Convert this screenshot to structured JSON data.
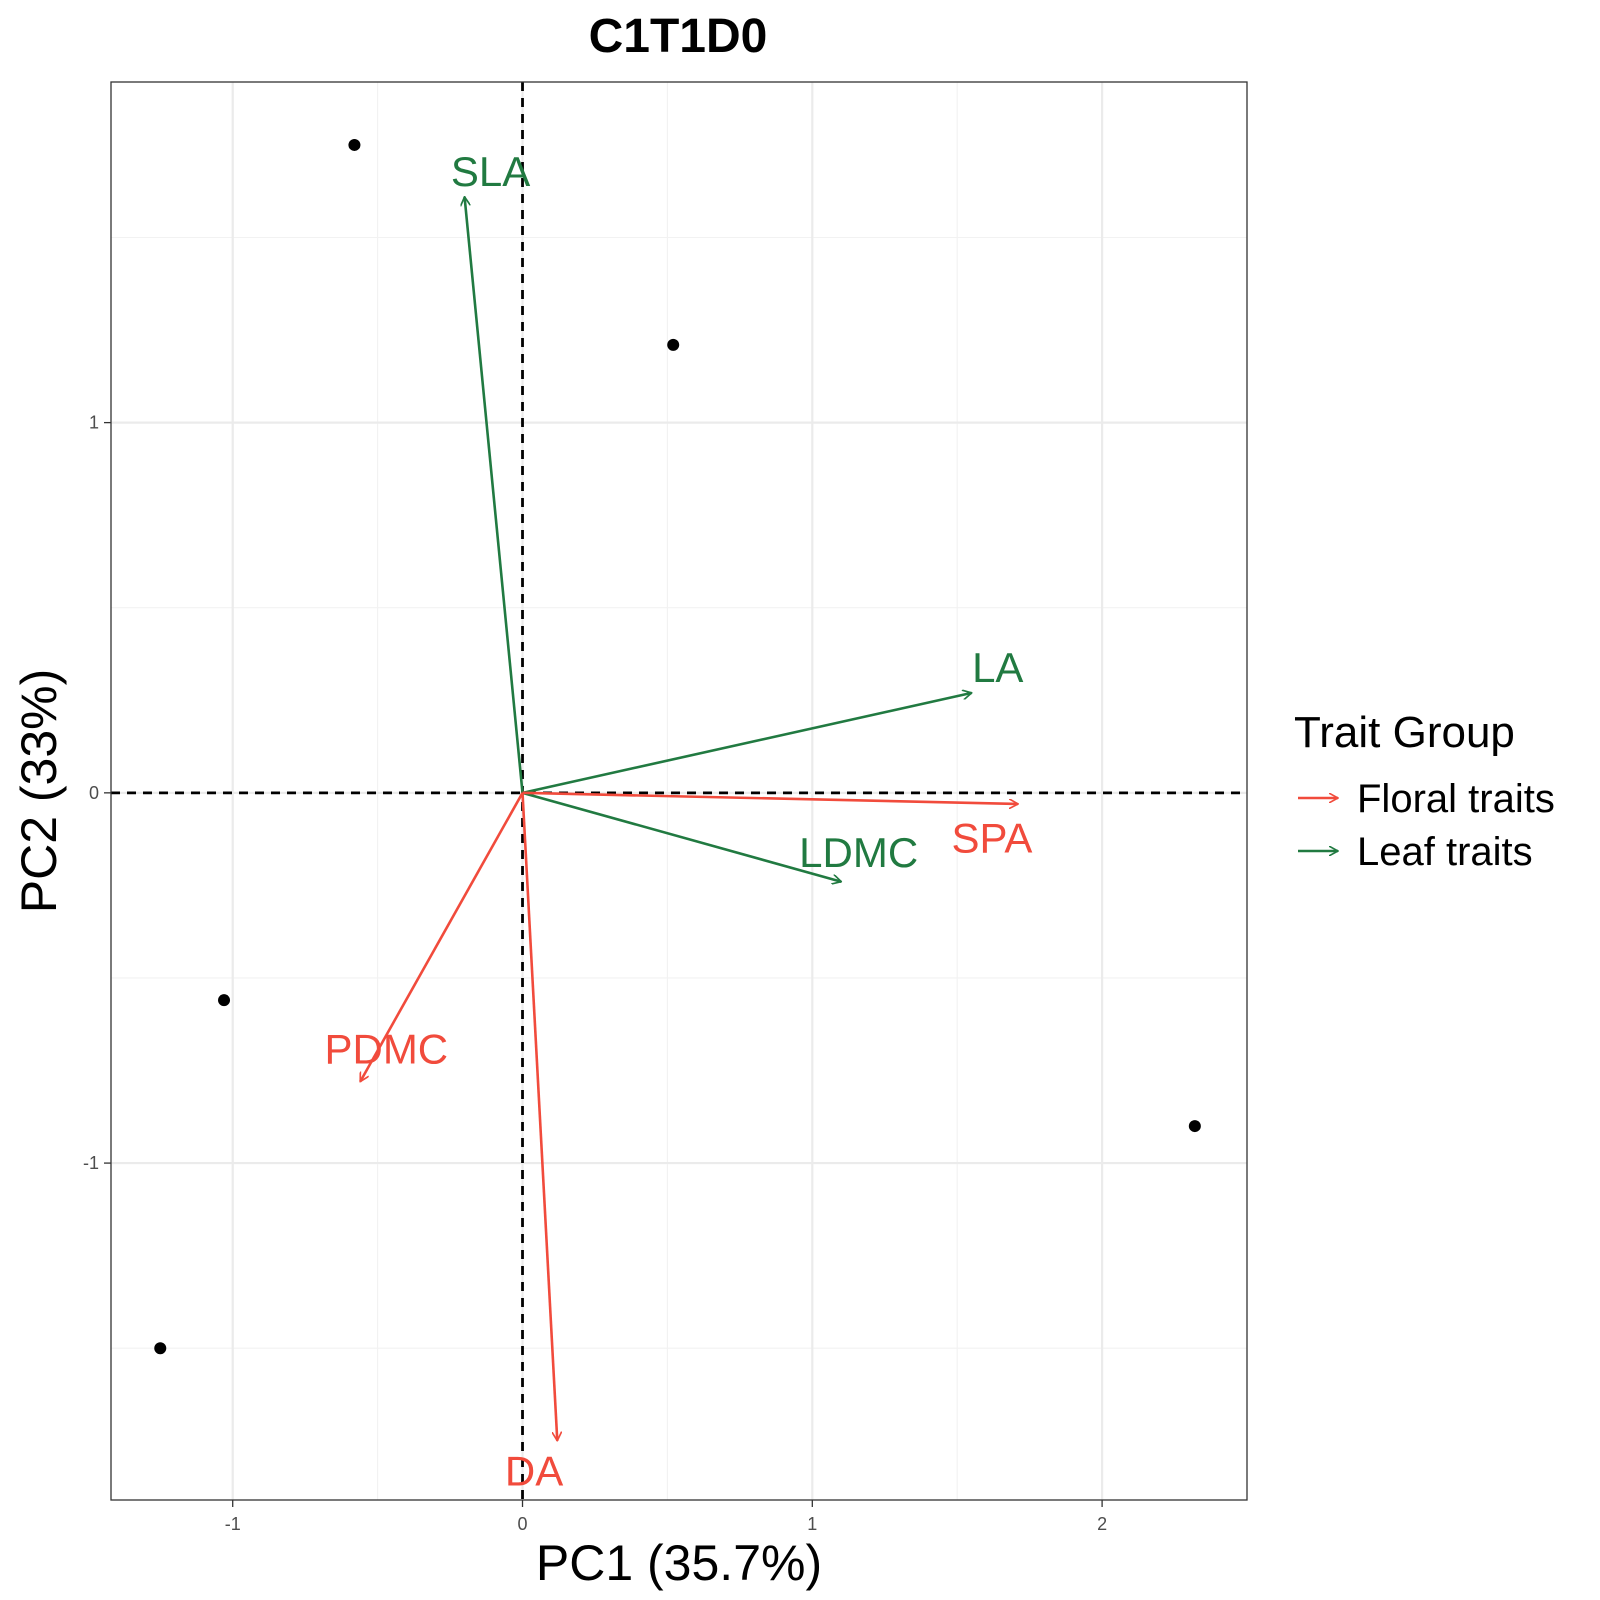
{
  "chart_data": {
    "type": "scatter",
    "title": "C1T1D0",
    "xlabel": "PC1 (35.7%)",
    "ylabel": "PC2 (33%)",
    "xlim": [
      -1.42,
      2.5
    ],
    "ylim": [
      -1.91,
      1.92
    ],
    "x_ticks": [
      -1,
      0,
      1,
      2
    ],
    "y_ticks": [
      -1,
      0,
      1
    ],
    "grid": true,
    "reference_lines": {
      "x": 0,
      "y": 0,
      "style": "dashed"
    },
    "points": [
      {
        "x": -0.58,
        "y": 1.75
      },
      {
        "x": 0.52,
        "y": 1.21
      },
      {
        "x": -1.03,
        "y": -0.56
      },
      {
        "x": -1.25,
        "y": -1.5
      },
      {
        "x": 2.32,
        "y": -0.9
      }
    ],
    "arrows": [
      {
        "label": "SLA",
        "group": "Leaf traits",
        "x": -0.2,
        "y": 1.61,
        "label_x": -0.11,
        "label_y": 1.68
      },
      {
        "label": "LA",
        "group": "Leaf traits",
        "x": 1.55,
        "y": 0.27,
        "label_x": 1.64,
        "label_y": 0.34
      },
      {
        "label": "LDMC",
        "group": "Leaf traits",
        "x": 1.1,
        "y": -0.24,
        "label_x": 1.16,
        "label_y": -0.16
      },
      {
        "label": "SPA",
        "group": "Floral traits",
        "x": 1.71,
        "y": -0.03,
        "label_x": 1.62,
        "label_y": -0.12
      },
      {
        "label": "PDMC",
        "group": "Floral traits",
        "x": -0.56,
        "y": -0.78,
        "label_x": -0.47,
        "label_y": -0.69
      },
      {
        "label": "DA",
        "group": "Floral traits",
        "x": 0.12,
        "y": -1.75,
        "label_x": 0.04,
        "label_y": -1.83
      }
    ],
    "legend": {
      "title": "Trait Group",
      "placement": "right",
      "entries": [
        {
          "name": "Floral traits",
          "color": "#f14b3c"
        },
        {
          "name": "Leaf traits",
          "color": "#217a41"
        }
      ]
    },
    "colors": {
      "Floral traits": "#f14b3c",
      "Leaf traits": "#217a41",
      "points": "#000000"
    }
  }
}
